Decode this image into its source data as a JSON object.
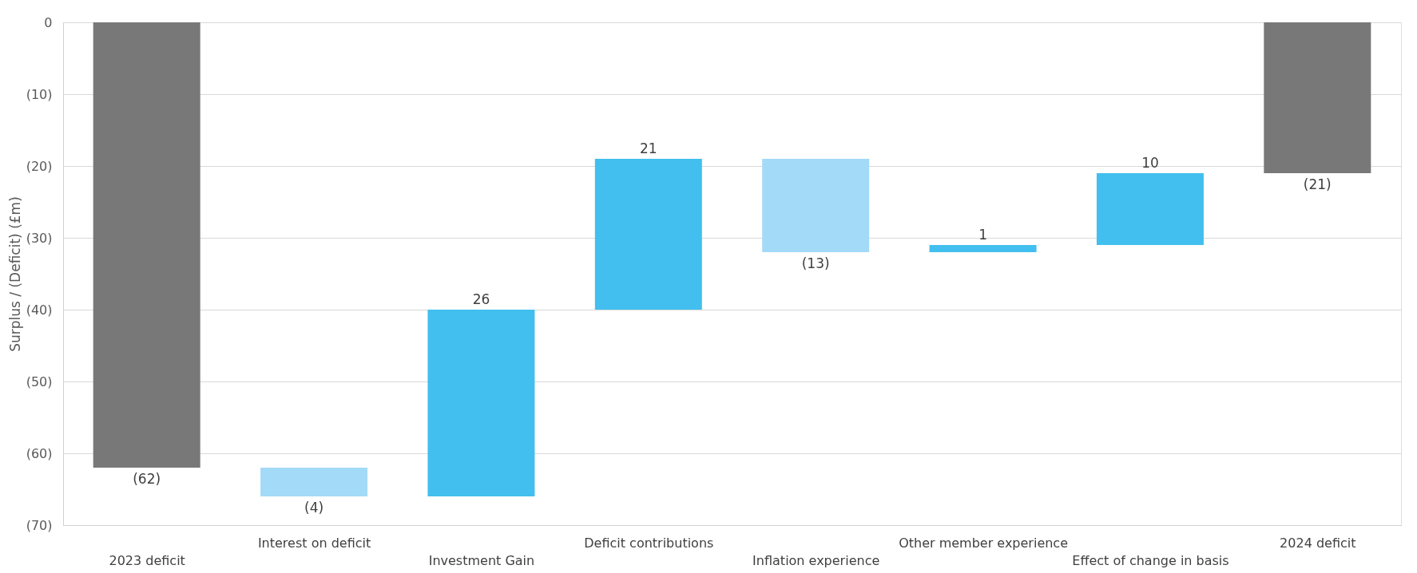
{
  "chart_data": {
    "type": "bar",
    "ylabel": "Surplus / (Deficit) (£m)",
    "categories": [
      "2023 deficit",
      "Interest on deficit",
      "Investment Gain",
      "Deficit contributions",
      "Inflation experience",
      "Other member experience",
      "Effect of change in basis",
      "2024 deficit"
    ],
    "values": [
      -62,
      -4,
      26,
      21,
      -13,
      1,
      10,
      -21
    ],
    "base": [
      0,
      -62,
      -66,
      -40,
      -19,
      -32,
      -31,
      0
    ],
    "colors": [
      "#787878",
      "#a3daf7",
      "#42bfee",
      "#42bfee",
      "#a3daf7",
      "#42bfee",
      "#42bfee",
      "#787878"
    ],
    "value_labels": [
      "(62)",
      "(4)",
      "26",
      "21",
      "(13)",
      "1",
      "10",
      "(21)"
    ],
    "ylim": [
      -70,
      0
    ],
    "yticks": [
      {
        "value": -70,
        "label": "(70)"
      },
      {
        "value": -60,
        "label": "(60)"
      },
      {
        "value": -50,
        "label": "(50)"
      },
      {
        "value": -40,
        "label": "(40)"
      },
      {
        "value": -30,
        "label": "(30)"
      },
      {
        "value": -20,
        "label": "(20)"
      },
      {
        "value": -10,
        "label": "(10)"
      },
      0
    ],
    "grid": "y"
  }
}
